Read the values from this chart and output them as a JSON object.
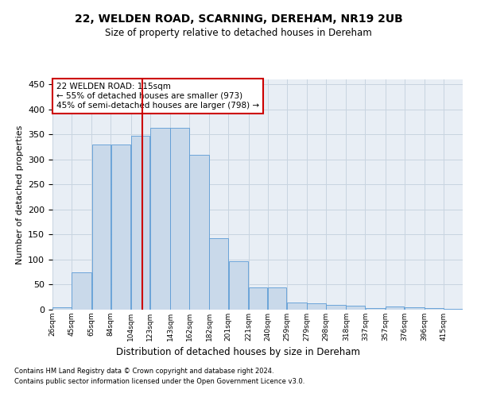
{
  "title": "22, WELDEN ROAD, SCARNING, DEREHAM, NR19 2UB",
  "subtitle": "Size of property relative to detached houses in Dereham",
  "xlabel": "Distribution of detached houses by size in Dereham",
  "ylabel": "Number of detached properties",
  "footnote1": "Contains HM Land Registry data © Crown copyright and database right 2024.",
  "footnote2": "Contains public sector information licensed under the Open Government Licence v3.0.",
  "annotation_line1": "22 WELDEN ROAD: 115sqm",
  "annotation_line2": "← 55% of detached houses are smaller (973)",
  "annotation_line3": "45% of semi-detached houses are larger (798) →",
  "property_size_bin_index": 4,
  "bins": [
    26,
    45,
    65,
    84,
    104,
    123,
    143,
    162,
    182,
    201,
    221,
    240,
    259,
    279,
    298,
    318,
    337,
    357,
    376,
    396,
    415
  ],
  "tick_labels": [
    "26sqm",
    "45sqm",
    "65sqm",
    "84sqm",
    "104sqm",
    "123sqm",
    "143sqm",
    "162sqm",
    "182sqm",
    "201sqm",
    "221sqm",
    "240sqm",
    "259sqm",
    "279sqm",
    "298sqm",
    "318sqm",
    "337sqm",
    "357sqm",
    "376sqm",
    "396sqm",
    "415sqm"
  ],
  "values": [
    5,
    75,
    330,
    330,
    347,
    363,
    363,
    310,
    143,
    97,
    45,
    45,
    15,
    12,
    10,
    8,
    3,
    6,
    5,
    3,
    1
  ],
  "bar_fill": "#c9d9ea",
  "bar_edge": "#5b9bd5",
  "vline_color": "#cc0000",
  "grid_color": "#c8d4e0",
  "bg_color": "#e8eef5",
  "annotation_box_edge": "#cc0000",
  "ylim": [
    0,
    460
  ],
  "yticks": [
    0,
    50,
    100,
    150,
    200,
    250,
    300,
    350,
    400,
    450
  ]
}
